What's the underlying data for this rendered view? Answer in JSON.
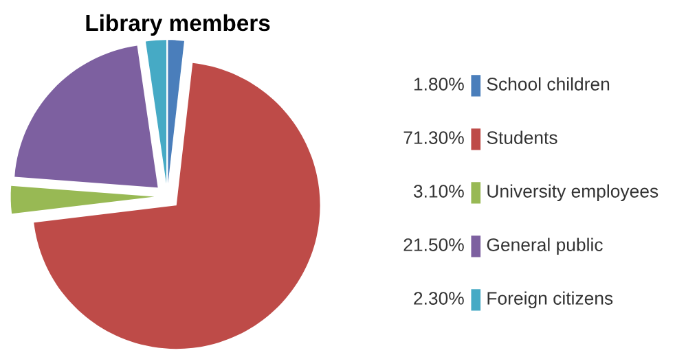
{
  "chart_data": {
    "type": "pie",
    "title": "Library members",
    "categories": [
      "School children",
      "Students",
      "University employees",
      "General public",
      "Foreign citizens"
    ],
    "values": [
      1.8,
      71.3,
      3.1,
      21.5,
      2.3
    ],
    "value_labels": [
      "1.80%",
      "71.30%",
      "3.10%",
      "21.50%",
      "2.30%"
    ],
    "colors": [
      "#4a7ebb",
      "#be4b48",
      "#98b954",
      "#7d60a0",
      "#46aac5"
    ],
    "legend": "right"
  }
}
